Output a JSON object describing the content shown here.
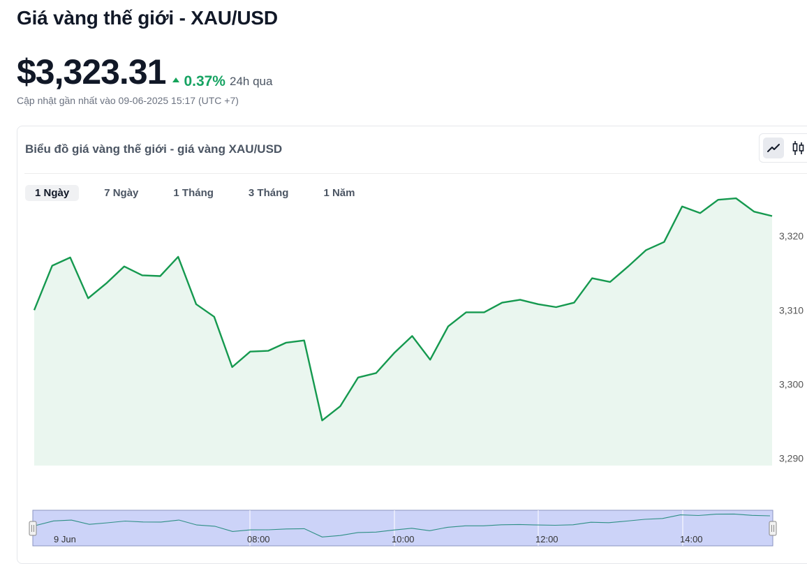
{
  "page": {
    "title": "Giá vàng thế giới - XAU/USD",
    "price": "$3,323.31",
    "change": "0.37%",
    "period": "24h qua",
    "updated": "Cập nhật gần nhất vào 09-06-2025 15:17 (UTC +7)"
  },
  "card": {
    "title": "Biểu đồ giá vàng thế giới - giá vàng XAU/USD",
    "chart_type_buttons": [
      {
        "icon": "line-chart-icon",
        "active": true
      },
      {
        "icon": "candlestick-icon",
        "active": false
      }
    ],
    "tabs": [
      {
        "label": "1 Ngày",
        "active": true
      },
      {
        "label": "7 Ngày",
        "active": false
      },
      {
        "label": "1 Tháng",
        "active": false
      },
      {
        "label": "3 Tháng",
        "active": false
      },
      {
        "label": "1 Năm",
        "active": false
      }
    ]
  },
  "colors": {
    "line": "#15994f",
    "area": "#eaf6ef",
    "up": "#16a362",
    "navigator": "#ccd3f8"
  },
  "chart_data": {
    "type": "area",
    "y_ticks": [
      "3,320",
      "3,310",
      "3,300",
      "3,290"
    ],
    "y_tick_values": [
      3320,
      3310,
      3300,
      3290
    ],
    "ylim": [
      3289,
      3323.6
    ],
    "navigator_labels": [
      "9 Jun",
      "08:00",
      "10:00",
      "12:00",
      "14:00"
    ],
    "values": [
      3310.0,
      3316.0,
      3317.1,
      3311.6,
      3313.6,
      3315.9,
      3314.7,
      3314.6,
      3317.2,
      3310.8,
      3309.1,
      3302.3,
      3304.4,
      3304.5,
      3305.6,
      3305.9,
      3295.1,
      3297.0,
      3300.9,
      3301.5,
      3304.2,
      3306.5,
      3303.3,
      3307.8,
      3309.7,
      3309.7,
      3311.0,
      3311.4,
      3310.8,
      3310.4,
      3311.0,
      3314.3,
      3313.8,
      3315.9,
      3318.1,
      3319.2,
      3324.0,
      3323.1,
      3324.9,
      3325.1,
      3323.3,
      3322.7
    ]
  }
}
